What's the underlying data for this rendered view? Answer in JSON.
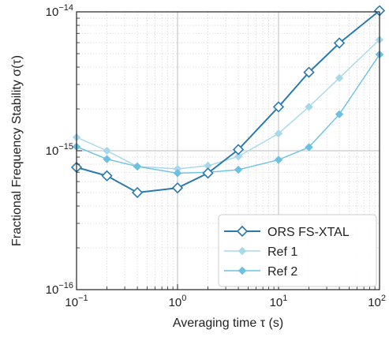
{
  "chart_data": {
    "type": "line",
    "xscale": "log",
    "yscale": "log",
    "xlim": [
      0.1,
      100
    ],
    "ylim": [
      1e-16,
      1e-14
    ],
    "xlabel": "Averaging time τ (s)",
    "ylabel": "Fractional Frequency Stability σ(τ)",
    "grid": true,
    "legend_position": "lower-right",
    "x_ticks": [
      {
        "value": 0.1,
        "base": "10",
        "exp": "−1"
      },
      {
        "value": 1,
        "base": "10",
        "exp": "0"
      },
      {
        "value": 10,
        "base": "10",
        "exp": "1"
      },
      {
        "value": 100,
        "base": "10",
        "exp": "2"
      }
    ],
    "y_ticks": [
      {
        "value": 1e-16,
        "base": "10",
        "exp": "−16"
      },
      {
        "value": 1e-15,
        "base": "10",
        "exp": "−15"
      },
      {
        "value": 1e-14,
        "base": "10",
        "exp": "−14"
      }
    ],
    "series": [
      {
        "name": "ORS FS-XTAL",
        "color": "#2a7ab0",
        "marker": "open-diamond",
        "x": [
          0.1,
          0.2,
          0.4,
          1,
          2,
          4,
          10,
          20,
          40,
          100
        ],
        "y": [
          7.6e-16,
          6.6e-16,
          5e-16,
          5.4e-16,
          6.9e-16,
          1.02e-15,
          2.07e-15,
          3.67e-15,
          5.96e-15,
          1.02e-14
        ]
      },
      {
        "name": "Ref 1",
        "color": "#a8d8ea",
        "marker": "filled-diamond",
        "x": [
          0.1,
          0.2,
          0.4,
          1,
          2,
          4,
          10,
          20,
          40,
          100
        ],
        "y": [
          1.25e-15,
          1e-15,
          7.7e-16,
          7.4e-16,
          7.8e-16,
          9.1e-16,
          1.33e-15,
          2.07e-15,
          3.34e-15,
          6.3e-15
        ]
      },
      {
        "name": "Ref 2",
        "color": "#6cc0e0",
        "marker": "filled-diamond",
        "x": [
          0.1,
          0.2,
          0.4,
          1,
          2,
          4,
          10,
          20,
          40,
          100
        ],
        "y": [
          1.07e-15,
          8.7e-16,
          7.7e-16,
          6.9e-16,
          7e-16,
          7.3e-16,
          8.6e-16,
          1.06e-15,
          1.83e-15,
          4.93e-15
        ]
      }
    ]
  }
}
